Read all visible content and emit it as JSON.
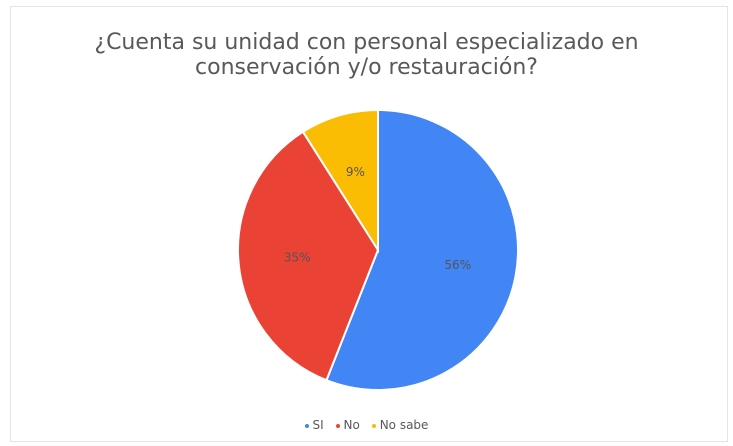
{
  "chart_data": {
    "type": "pie",
    "title_lines": [
      "¿Cuenta su unidad con personal especializado en",
      "conservación y/o restauración?"
    ],
    "slices": [
      {
        "name": "SI",
        "value": 56,
        "label": "56%",
        "color": "#4285F4"
      },
      {
        "name": "No",
        "value": 35,
        "label": "35%",
        "color": "#EA4335"
      },
      {
        "name": "No sabe",
        "value": 9,
        "label": "9%",
        "color": "#FBBC04"
      }
    ],
    "legend_position": "bottom"
  }
}
